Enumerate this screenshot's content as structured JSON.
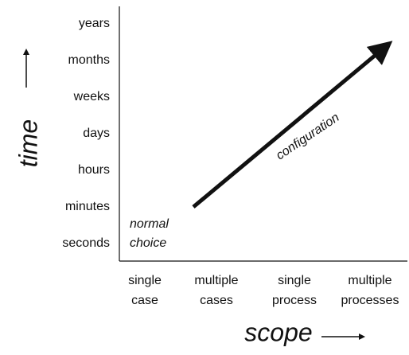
{
  "y_axis": {
    "title": "time",
    "labels": [
      "years",
      "months",
      "weeks",
      "days",
      "hours",
      "minutes",
      "seconds"
    ]
  },
  "x_axis": {
    "title": "scope",
    "labels": [
      [
        "single",
        "case"
      ],
      [
        "multiple",
        "cases"
      ],
      [
        "single",
        "process"
      ],
      [
        "multiple",
        "processes"
      ]
    ]
  },
  "annotations": {
    "start": [
      "normal",
      "choice"
    ],
    "arrow": "configuration"
  }
}
